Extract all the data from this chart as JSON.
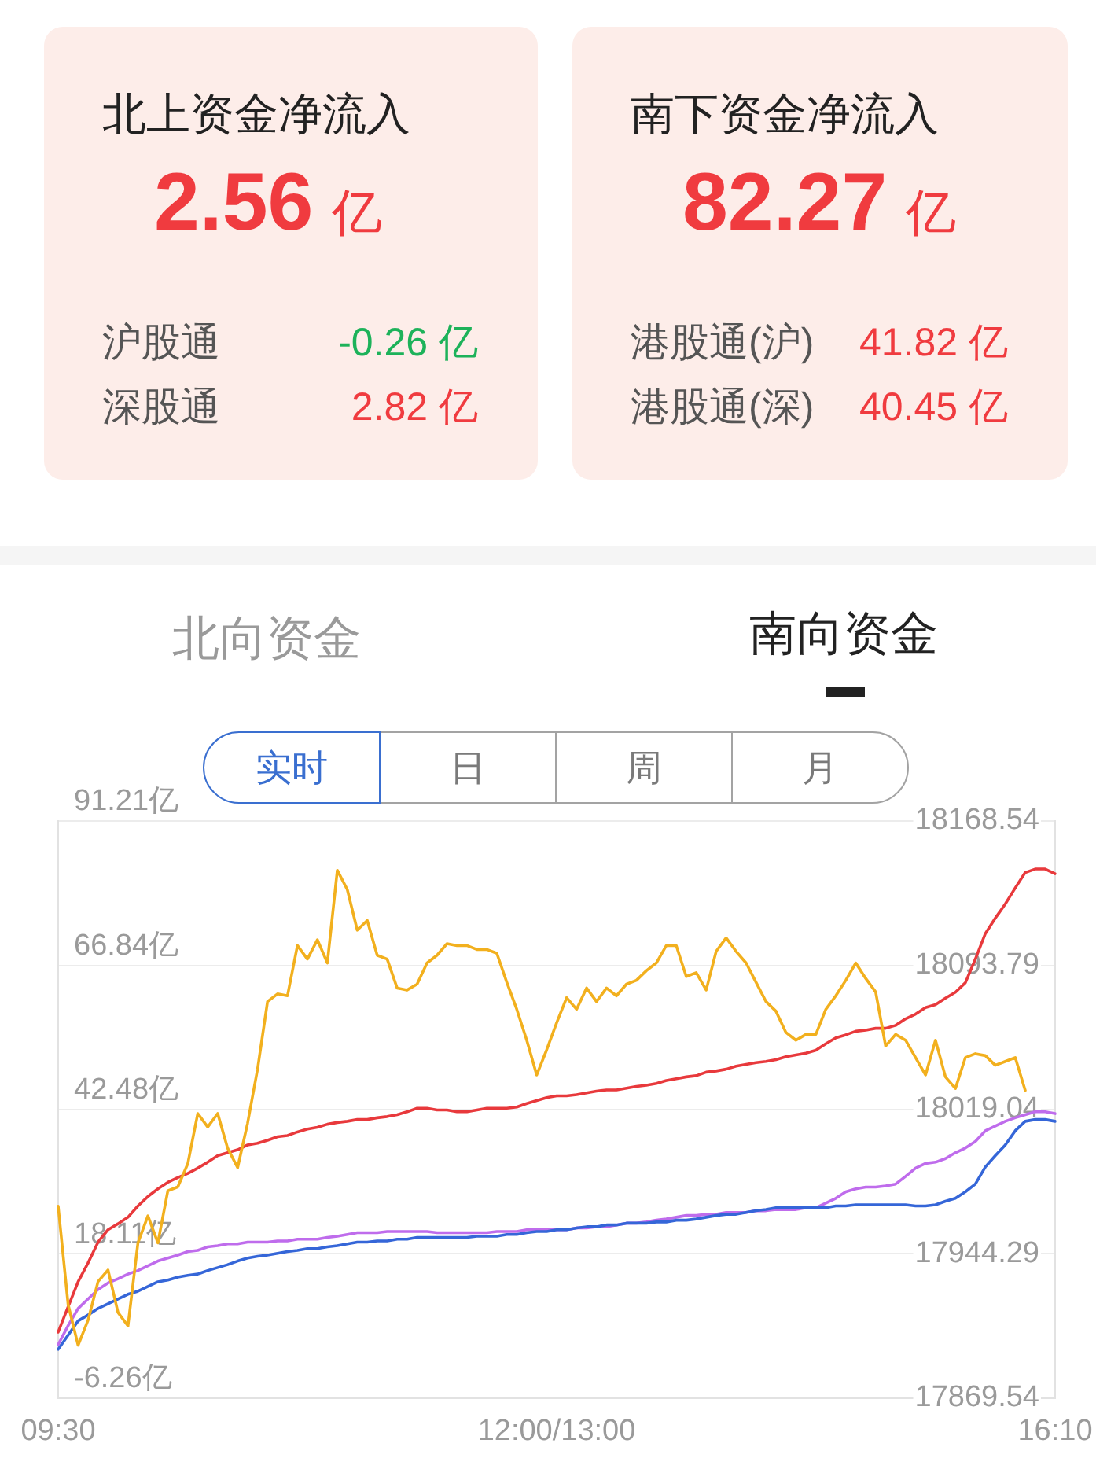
{
  "chart_data": [
    {
      "type": "other",
      "title": "北上资金净流入",
      "subtitle": "2.56 亿",
      "categories": [
        "沪股通",
        "深股通"
      ],
      "values": [
        -0.26,
        2.82
      ],
      "value_labels": [
        "-0.26 亿",
        "2.82 亿"
      ]
    },
    {
      "type": "other",
      "title": "南下资金净流入",
      "subtitle": "82.27 亿",
      "categories": [
        "港股通(沪)",
        "港股通(深)"
      ],
      "values": [
        41.82,
        40.45
      ],
      "value_labels": [
        "41.82 亿",
        "40.45 亿"
      ]
    },
    {
      "type": "other",
      "categories": [
        "北向资金",
        "南向资金"
      ]
    },
    {
      "type": "other",
      "categories": [
        "实时",
        "日",
        "周",
        "月"
      ]
    },
    {
      "type": "line",
      "categories": [
        "09:30",
        null,
        null,
        null,
        null,
        null,
        null,
        null,
        null,
        null,
        null,
        null,
        null,
        null,
        null,
        null,
        null,
        null,
        null,
        null,
        null,
        null,
        null,
        null,
        null,
        null,
        null,
        null,
        null,
        null,
        null,
        null,
        null,
        null,
        null,
        null,
        null,
        null,
        null,
        null,
        null,
        null,
        null,
        null,
        null,
        null,
        null,
        null,
        null,
        null,
        "12:00/13:00",
        null,
        null,
        null,
        null,
        null,
        null,
        null,
        null,
        null,
        null,
        null,
        null,
        null,
        null,
        null,
        null,
        null,
        null,
        null,
        null,
        null,
        null,
        null,
        null,
        null,
        null,
        null,
        null,
        null,
        null,
        null,
        null,
        null,
        null,
        null,
        null,
        null,
        null,
        null,
        null,
        null,
        null,
        null,
        null,
        null,
        null,
        null,
        null,
        null,
        "16:10"
      ],
      "series": [
        {
          "color": "#e8393c",
          "values": [
            4.9,
            9.2,
            13.4,
            16.6,
            20.1,
            22.2,
            23.2,
            24.3,
            26.2,
            27.8,
            29.1,
            30.2,
            31.0,
            31.7,
            32.6,
            33.6,
            34.7,
            35.2,
            35.7,
            36.5,
            36.8,
            37.3,
            37.9,
            38.1,
            38.7,
            39.2,
            39.5,
            40.0,
            40.3,
            40.5,
            40.8,
            40.8,
            41.1,
            41.3,
            41.6,
            42.1,
            42.7,
            42.7,
            42.4,
            42.4,
            42.1,
            42.1,
            42.4,
            42.7,
            42.7,
            42.7,
            42.9,
            43.5,
            44.0,
            44.5,
            44.8,
            44.8,
            45.0,
            45.3,
            45.6,
            45.8,
            45.8,
            46.1,
            46.4,
            46.6,
            46.9,
            47.4,
            47.7,
            48.0,
            48.2,
            48.8,
            49.0,
            49.3,
            49.8,
            50.1,
            50.4,
            50.6,
            50.9,
            51.4,
            51.7,
            52.0,
            52.5,
            53.6,
            54.6,
            55.1,
            55.7,
            55.9,
            56.2,
            56.2,
            56.7,
            57.8,
            58.6,
            59.7,
            60.2,
            61.3,
            62.3,
            63.9,
            67.9,
            72.2,
            74.8,
            77.2,
            79.9,
            82.5,
            83.1,
            83.1,
            82.3
          ]
        },
        {
          "color": "#bf6cec",
          "values": [
            2.8,
            6.0,
            8.9,
            10.5,
            12.1,
            13.2,
            13.9,
            14.7,
            15.3,
            16.1,
            16.9,
            17.4,
            17.9,
            18.5,
            18.7,
            19.3,
            19.5,
            19.8,
            19.8,
            20.1,
            20.1,
            20.1,
            20.3,
            20.3,
            20.6,
            20.6,
            20.6,
            20.9,
            21.1,
            21.4,
            21.7,
            21.7,
            21.7,
            21.9,
            21.9,
            21.9,
            21.9,
            21.9,
            21.7,
            21.7,
            21.7,
            21.7,
            21.7,
            21.7,
            21.9,
            21.9,
            21.9,
            22.2,
            22.2,
            22.2,
            22.2,
            22.2,
            22.5,
            22.5,
            22.7,
            22.7,
            23.0,
            23.3,
            23.3,
            23.5,
            23.8,
            24.0,
            24.3,
            24.6,
            24.6,
            24.8,
            24.8,
            25.1,
            25.1,
            25.1,
            25.4,
            25.4,
            25.6,
            25.6,
            25.6,
            25.9,
            25.9,
            26.7,
            27.5,
            28.6,
            29.1,
            29.4,
            29.4,
            29.6,
            29.9,
            31.2,
            32.6,
            33.4,
            33.6,
            34.2,
            35.2,
            36.0,
            37.1,
            38.9,
            39.7,
            40.5,
            41.1,
            41.6,
            42.1,
            42.1,
            41.8
          ]
        },
        {
          "color": "#3566d8",
          "values": [
            2.0,
            4.4,
            6.8,
            7.8,
            8.9,
            9.7,
            10.5,
            11.3,
            11.8,
            12.6,
            13.4,
            13.7,
            14.2,
            14.5,
            14.7,
            15.3,
            15.8,
            16.3,
            16.9,
            17.4,
            17.7,
            17.9,
            18.2,
            18.5,
            18.7,
            19.0,
            19.0,
            19.3,
            19.5,
            19.8,
            20.1,
            20.1,
            20.3,
            20.3,
            20.6,
            20.6,
            20.9,
            20.9,
            20.9,
            20.9,
            20.9,
            20.9,
            21.1,
            21.1,
            21.1,
            21.4,
            21.4,
            21.7,
            21.9,
            21.9,
            22.2,
            22.2,
            22.5,
            22.7,
            22.7,
            23.0,
            23.0,
            23.3,
            23.3,
            23.3,
            23.5,
            23.5,
            23.8,
            23.8,
            24.0,
            24.3,
            24.6,
            24.8,
            24.8,
            25.1,
            25.4,
            25.6,
            25.9,
            25.9,
            25.9,
            25.9,
            25.9,
            25.9,
            26.2,
            26.2,
            26.4,
            26.4,
            26.4,
            26.4,
            26.4,
            26.4,
            26.2,
            26.2,
            26.4,
            27.0,
            27.5,
            28.6,
            29.9,
            32.8,
            34.7,
            36.5,
            38.9,
            40.5,
            40.8,
            40.8,
            40.5
          ]
        },
        {
          "color": "#f2b01e",
          "axis": "y2",
          "values": [
            17969,
            17918,
            17897,
            17910,
            17930,
            17936,
            17914,
            17907,
            17950,
            17964,
            17950,
            17977,
            17979,
            17991,
            18017,
            18010,
            18017,
            17999,
            17989,
            18012,
            18040,
            18075,
            18079,
            18078,
            18104,
            18097,
            18107,
            18095,
            18143,
            18133,
            18112,
            18117,
            18099,
            18097,
            18082,
            18081,
            18084,
            18095,
            18099,
            18105,
            18104,
            18104,
            18102,
            18102,
            18100,
            18085,
            18071,
            18055,
            18037,
            18050,
            18064,
            18077,
            18071,
            18082,
            18075,
            18082,
            18078,
            18084,
            18086,
            18091,
            18095,
            18104,
            18104,
            18088,
            18090,
            18081,
            18101,
            18108,
            18101,
            18095,
            18085,
            18075,
            18070,
            18059,
            18055,
            18058,
            18058,
            18071,
            18078,
            18086,
            18095,
            18087,
            18080,
            18052,
            18058,
            18055,
            18046,
            18037,
            18055,
            18036,
            18030,
            18046,
            18048,
            18047,
            18042,
            18044,
            18046,
            18029,
            null,
            null,
            null
          ]
        }
      ],
      "ylim": [
        -6.26,
        91.21
      ],
      "yticks": [
        {
          "value": -6.26,
          "label": "-6.26亿"
        },
        {
          "value": 18.11,
          "label": "18.11亿"
        },
        {
          "value": 42.48,
          "label": "42.48亿"
        },
        {
          "value": 66.84,
          "label": "66.84亿"
        },
        {
          "value": 91.21,
          "label": "91.21亿"
        }
      ],
      "y2lim": [
        17869.54,
        18168.54
      ],
      "y2ticks": [
        17869.54,
        17944.29,
        18019.04,
        18093.79,
        18168.54
      ],
      "grid": "y"
    }
  ]
}
